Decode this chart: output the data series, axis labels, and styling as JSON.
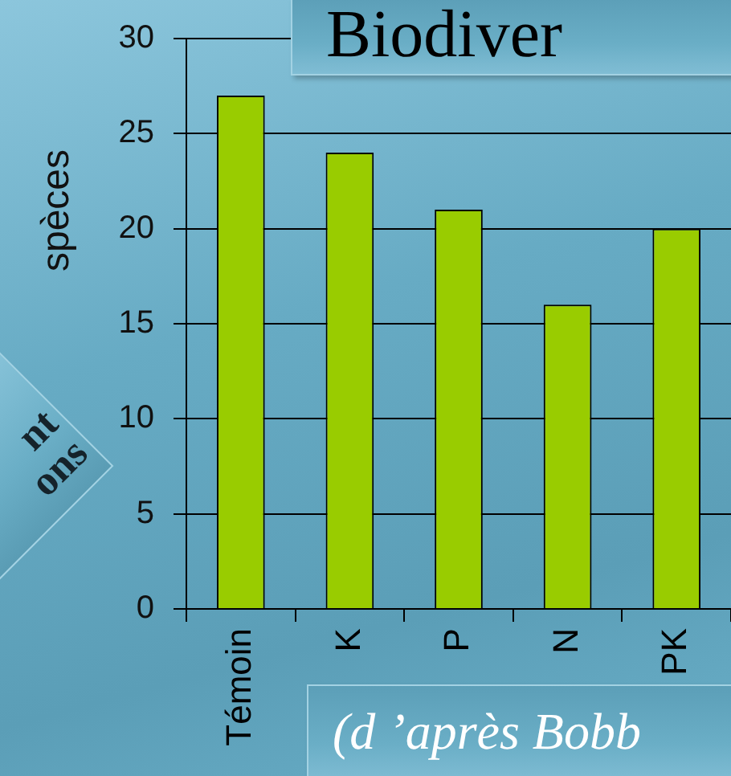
{
  "chart_data": {
    "type": "bar",
    "title": "Biodiver",
    "ylabel": "spèces",
    "categories": [
      "Témoin",
      "K",
      "P",
      "N",
      "PK"
    ],
    "values": [
      27,
      24,
      21,
      16,
      20
    ],
    "color": "#99cc00",
    "ylim": [
      0,
      30
    ],
    "yticks": [
      0,
      5,
      10,
      15,
      20,
      25,
      30
    ],
    "grid": "y",
    "legend": false,
    "annotations": [
      "nt",
      "ons",
      "(d ’après Bobb"
    ]
  }
}
